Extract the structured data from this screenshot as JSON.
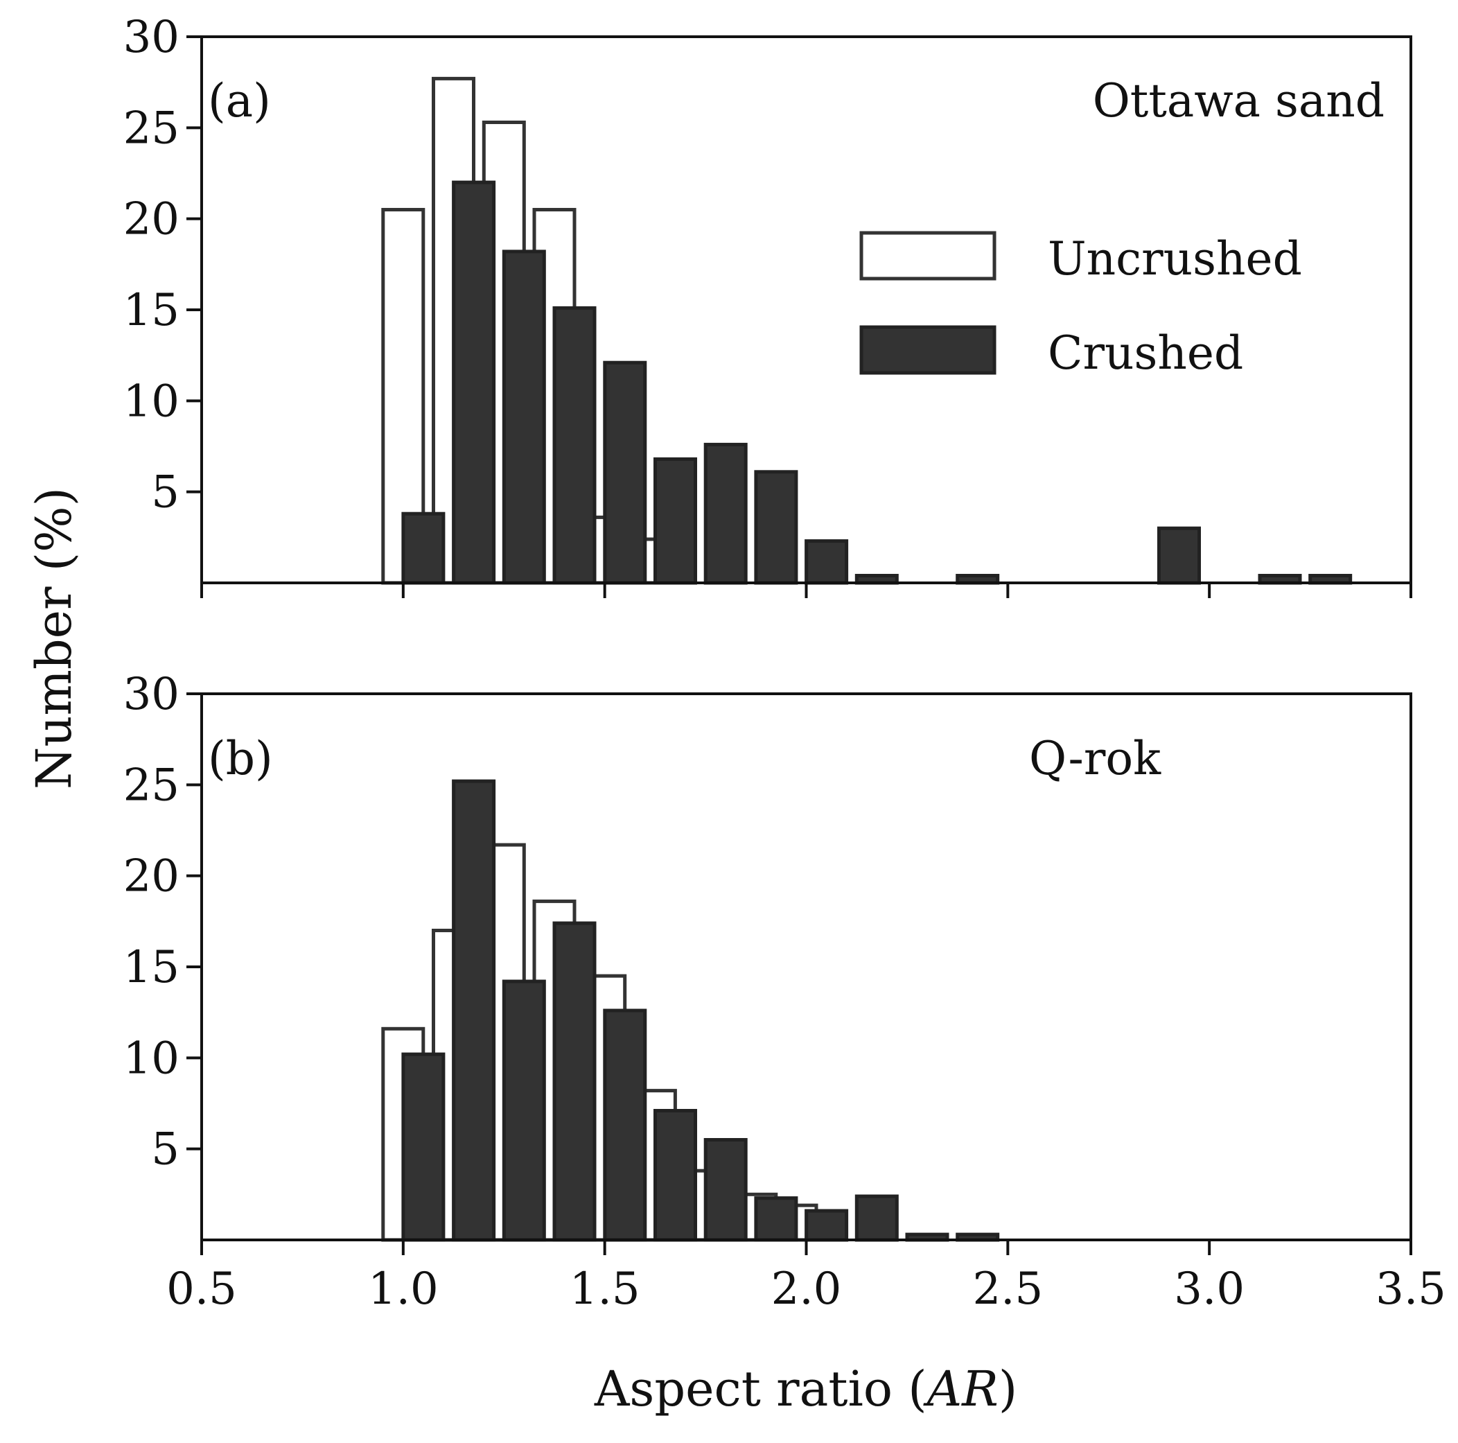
{
  "colors": {
    "uncrushed_fill": "#ffffff",
    "crushed_fill": "#333333",
    "edge": "#333333",
    "axis": "#111111"
  },
  "figure": {
    "ylabel": "Number (%)",
    "xlabel_main": "Aspect ratio (",
    "xlabel_var": "AR",
    "xlabel_close": ")"
  },
  "legend": {
    "uncrushed": "Uncrushed",
    "crushed": "Crushed"
  },
  "chart_data": [
    {
      "type": "bar",
      "panel": "(a)",
      "title": "Ottawa sand",
      "xlim": [
        0.5,
        3.5
      ],
      "ylim": [
        0,
        30
      ],
      "xticks": [
        "0.5",
        "1.0",
        "1.5",
        "2.0",
        "2.5",
        "3.0",
        "3.5"
      ],
      "yticks": [
        "5",
        "10",
        "15",
        "20",
        "25",
        "30"
      ],
      "bin_width": 0.125,
      "series": [
        {
          "name": "Uncrushed",
          "x": [
            1.0,
            1.125,
            1.25,
            1.375,
            1.5,
            1.625
          ],
          "values": [
            20.5,
            27.7,
            25.3,
            20.5,
            3.6,
            2.4
          ]
        },
        {
          "name": "Crushed",
          "x": [
            1.05,
            1.175,
            1.3,
            1.425,
            1.55,
            1.675,
            1.8,
            1.925,
            2.05,
            2.175,
            2.425,
            2.925,
            3.175,
            3.3
          ],
          "values": [
            3.8,
            22.0,
            18.2,
            15.1,
            12.1,
            6.8,
            7.6,
            6.1,
            2.3,
            0.4,
            0.4,
            3.0,
            0.4,
            0.4
          ]
        }
      ]
    },
    {
      "type": "bar",
      "panel": "(b)",
      "title": "Q-rok",
      "xlim": [
        0.5,
        3.5
      ],
      "ylim": [
        0,
        30
      ],
      "xticks": [
        "0.5",
        "1.0",
        "1.5",
        "2.0",
        "2.5",
        "3.0",
        "3.5"
      ],
      "yticks": [
        "5",
        "10",
        "15",
        "20",
        "25",
        "30"
      ],
      "bin_width": 0.125,
      "series": [
        {
          "name": "Uncrushed",
          "x": [
            1.0,
            1.125,
            1.25,
            1.375,
            1.5,
            1.625,
            1.75,
            1.875,
            1.975
          ],
          "values": [
            11.6,
            17.0,
            21.7,
            18.6,
            14.5,
            8.2,
            3.8,
            2.5,
            1.9
          ]
        },
        {
          "name": "Crushed",
          "x": [
            1.05,
            1.175,
            1.3,
            1.425,
            1.55,
            1.675,
            1.8,
            1.925,
            2.05,
            2.175,
            2.3,
            2.425
          ],
          "values": [
            10.2,
            25.2,
            14.2,
            17.4,
            12.6,
            7.1,
            5.5,
            2.3,
            1.6,
            2.4,
            0.3,
            0.3
          ]
        }
      ]
    }
  ]
}
